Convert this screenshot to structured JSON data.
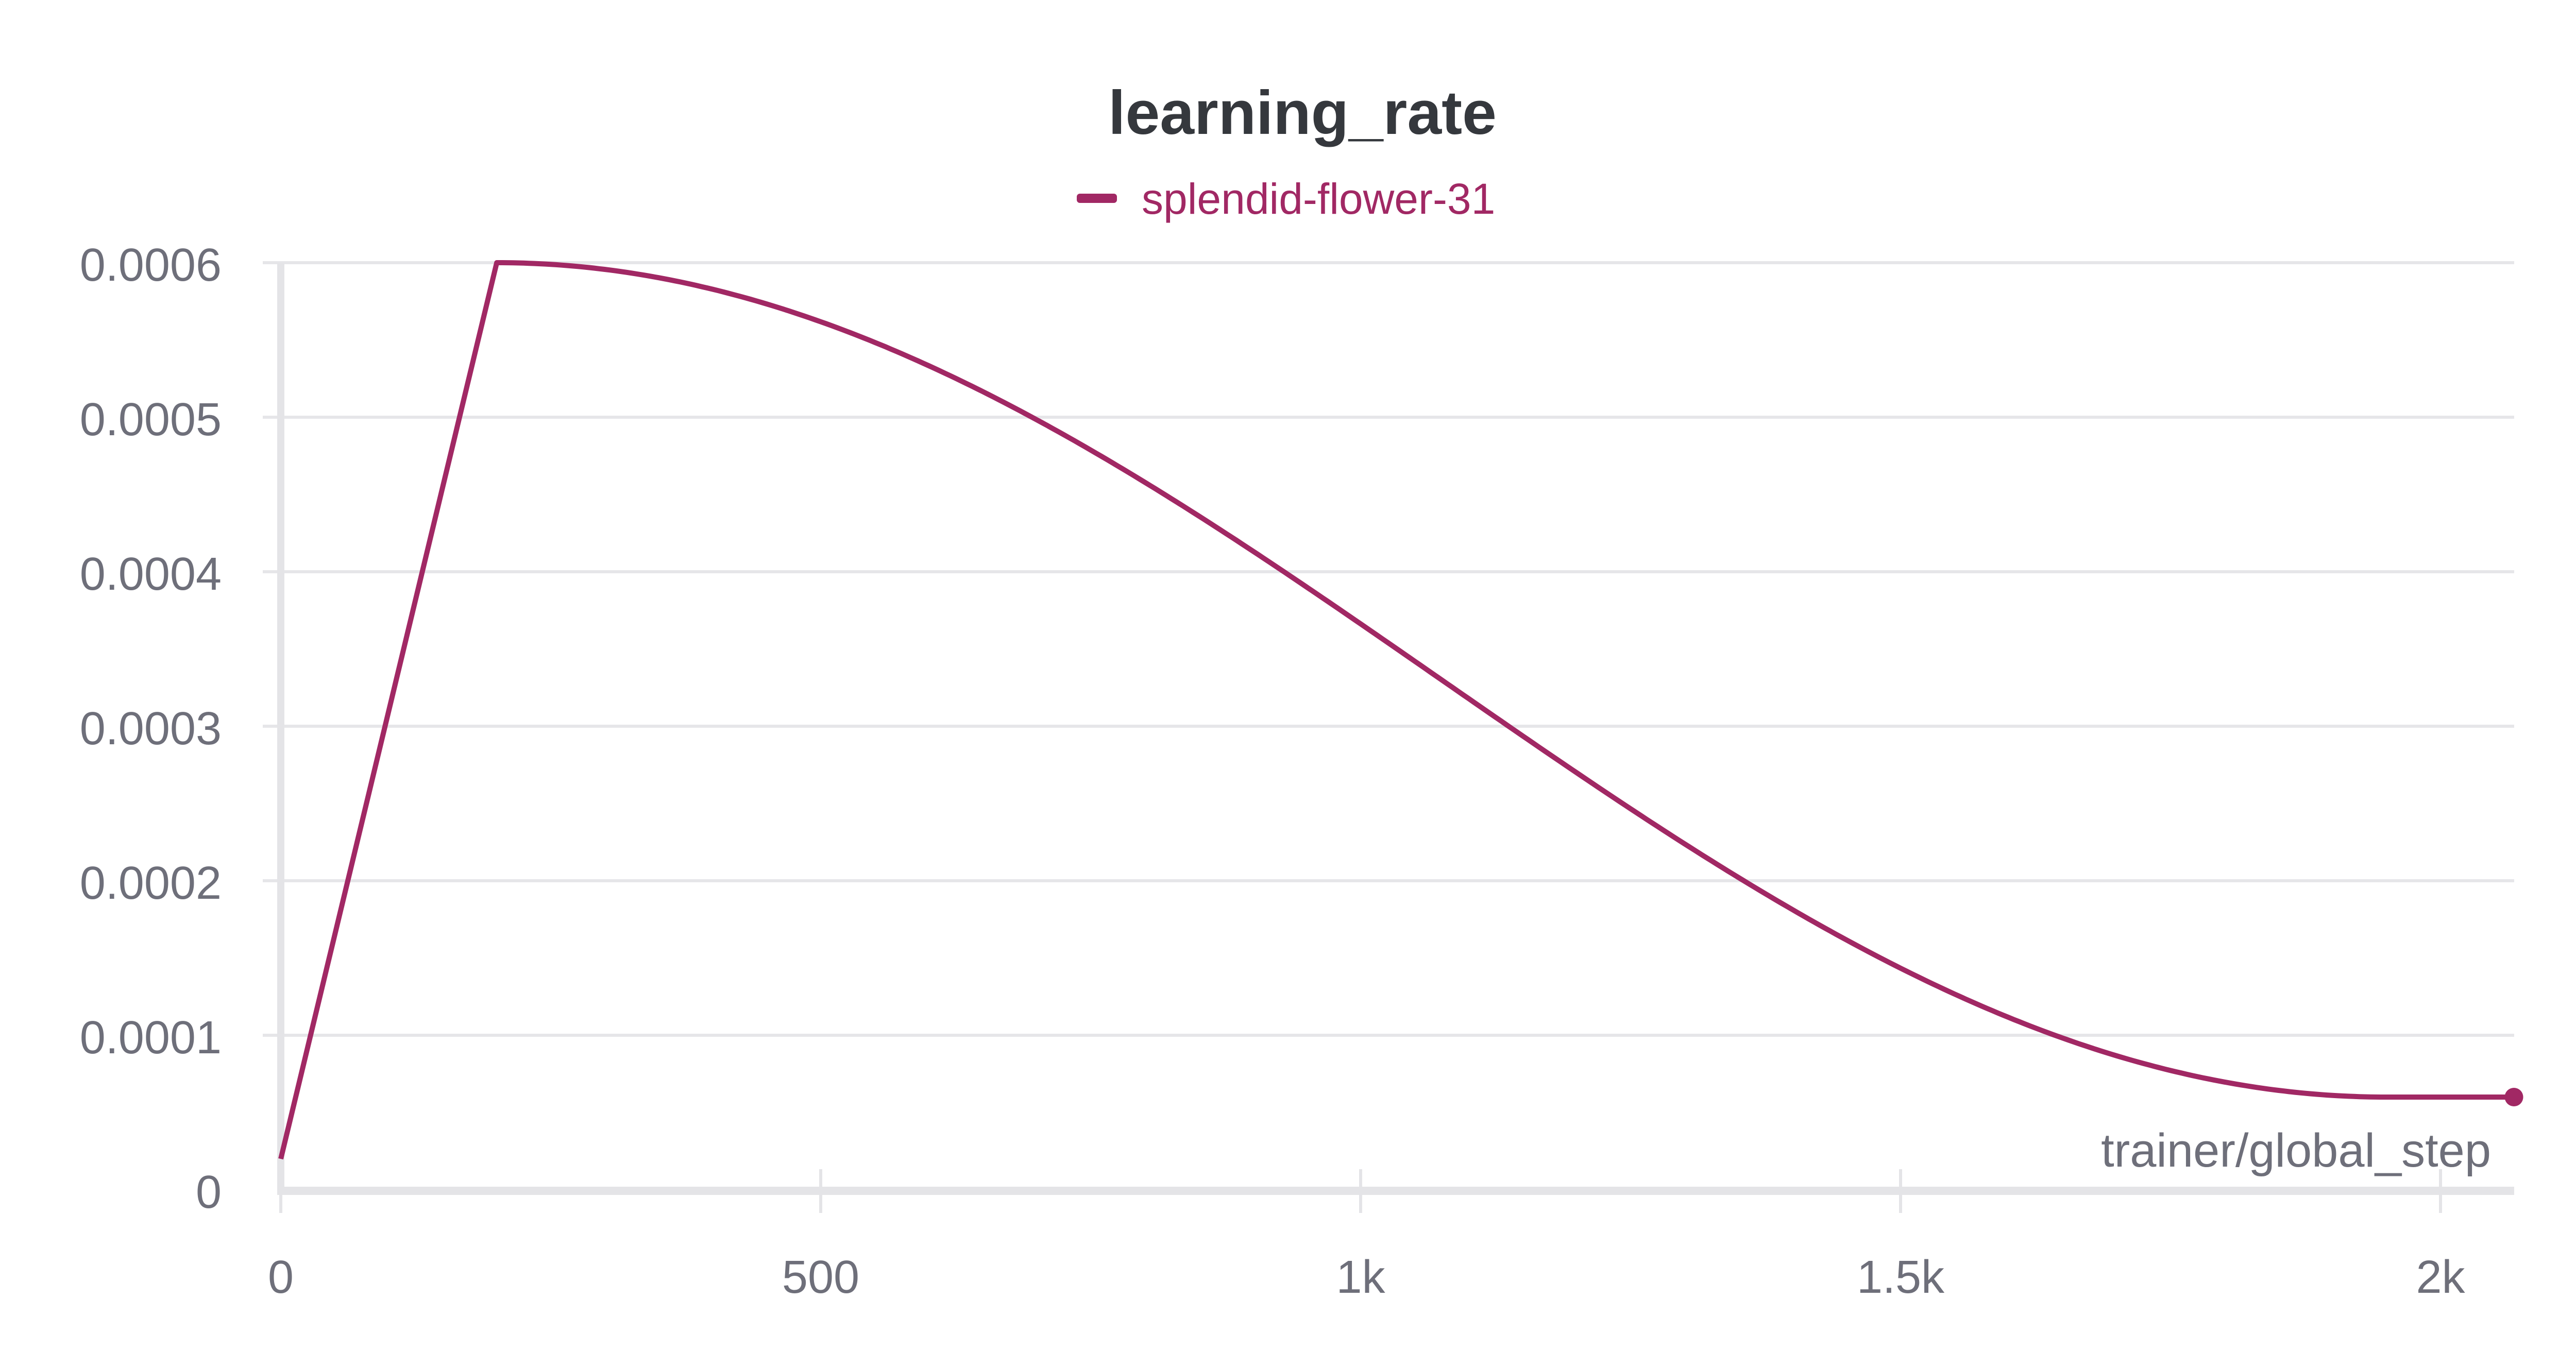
{
  "chart_data": {
    "type": "line",
    "title": "learning_rate",
    "xlabel": "trainer/global_step",
    "ylabel": "",
    "legend": [
      {
        "name": "splendid-flower-31",
        "color": "#a12864"
      }
    ],
    "xlim": [
      0,
      2070
    ],
    "ylim": [
      0,
      0.0006
    ],
    "x_ticks": [
      0,
      500,
      1000,
      1500,
      2000
    ],
    "x_tick_labels": [
      "0",
      "500",
      "1k",
      "1.5k",
      "2k"
    ],
    "y_ticks": [
      0,
      0.0001,
      0.0002,
      0.0003,
      0.0004,
      0.0005,
      0.0006
    ],
    "y_tick_labels": [
      "0",
      "0.0001",
      "0.0002",
      "0.0003",
      "0.0004",
      "0.0005",
      "0.0006"
    ],
    "grid": true,
    "legend_position": "top-center",
    "series": [
      {
        "name": "splendid-flower-31",
        "color": "#a12864",
        "x": [
          0,
          200,
          300,
          400,
          500,
          600,
          700,
          800,
          900,
          1000,
          1100,
          1200,
          1300,
          1400,
          1500,
          1600,
          1700,
          1800,
          1900,
          2000,
          2068
        ],
        "values": [
          2e-05,
          0.0006,
          0.000593,
          0.000576,
          0.000548,
          0.000513,
          0.000471,
          0.000424,
          0.000375,
          0.000326,
          0.000277,
          0.00023,
          0.000187,
          0.000149,
          0.000117,
          9.1e-05,
          7.3e-05,
          6.3e-05,
          6e-05,
          6e-05,
          6e-05
        ]
      }
    ]
  },
  "chart": {
    "title": "learning_rate",
    "legend_label": "splendid-flower-31",
    "xlabel": "trainer/global_step",
    "x_tick_labels": [
      "0",
      "500",
      "1k",
      "1.5k",
      "2k"
    ],
    "y_tick_labels": [
      "0",
      "0.0001",
      "0.0002",
      "0.0003",
      "0.0004",
      "0.0005",
      "0.0006"
    ]
  }
}
